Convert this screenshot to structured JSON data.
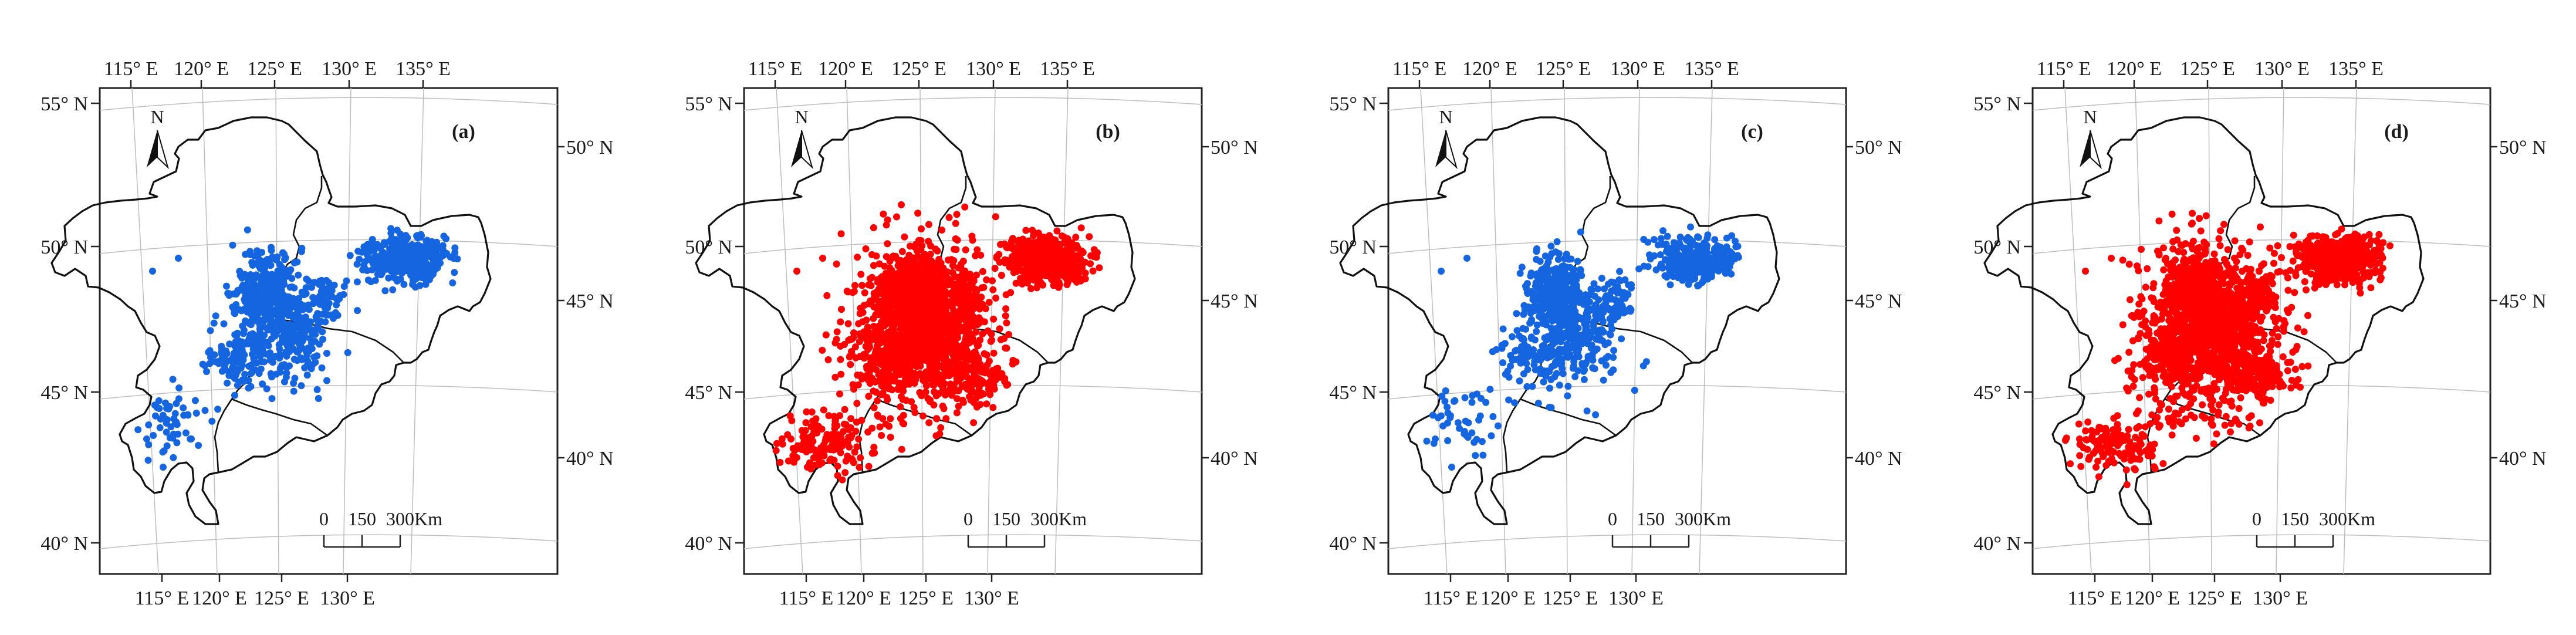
{
  "figure": {
    "panels": [
      {
        "id": "a",
        "label": "(a)",
        "color": "#1565e0",
        "density": 0.45
      },
      {
        "id": "b",
        "label": "(b)",
        "color": "#ff0000",
        "density": 1.0
      },
      {
        "id": "c",
        "label": "(c)",
        "color": "#1565e0",
        "density": 0.4
      },
      {
        "id": "d",
        "label": "(d)",
        "color": "#ff0000",
        "density": 0.95
      }
    ],
    "top_lon_labels": [
      "115° E",
      "120° E",
      "125° E",
      "130° E",
      "135° E"
    ],
    "bottom_lon_labels": [
      "115° E",
      "120° E",
      "125° E",
      "130° E"
    ],
    "left_lat_labels": [
      "55° N",
      "50° N",
      "45° N",
      "40° N"
    ],
    "right_lat_labels": [
      "50° N",
      "45° N",
      "40° N"
    ],
    "north_arrow": "N",
    "scale_bar": {
      "ticks": [
        "0",
        "150",
        "300"
      ],
      "unit": "Km"
    }
  }
}
